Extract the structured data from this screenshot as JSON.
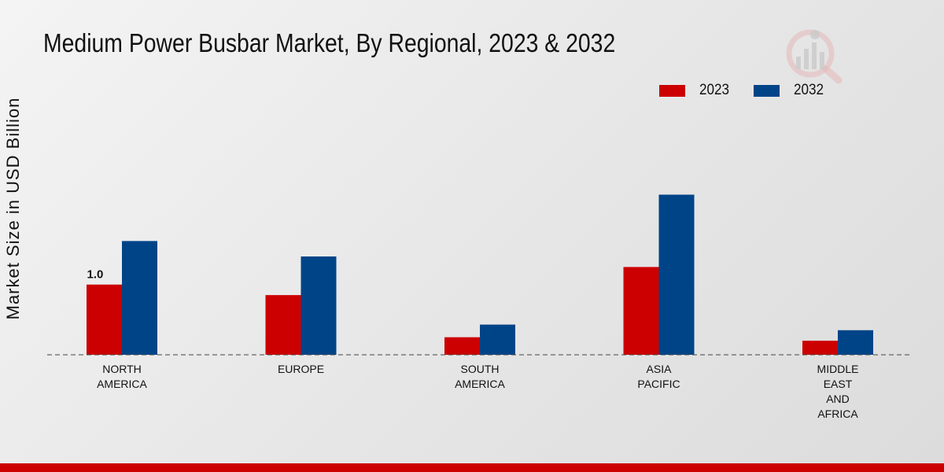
{
  "chart_data": {
    "type": "bar",
    "title": "Medium Power Busbar Market, By Regional, 2023 & 2032",
    "xlabel": "",
    "ylabel": "Market Size in USD Billion",
    "categories": [
      "NORTH\nAMERICA",
      "EUROPE",
      "SOUTH\nAMERICA",
      "ASIA\nPACIFIC",
      "MIDDLE\nEAST\nAND\nAFRICA"
    ],
    "series": [
      {
        "name": "2023",
        "color": "#cc0000",
        "values": [
          1.0,
          0.85,
          0.25,
          1.25,
          0.2
        ]
      },
      {
        "name": "2032",
        "color": "#004488",
        "values": [
          1.62,
          1.4,
          0.43,
          2.28,
          0.35
        ]
      }
    ],
    "data_labels": [
      {
        "series": 0,
        "index": 0,
        "text": "1.0"
      }
    ],
    "ylim": [
      0,
      4.1
    ],
    "grid": false,
    "legend_position": "top-right"
  },
  "footer_color": "#cc0000"
}
